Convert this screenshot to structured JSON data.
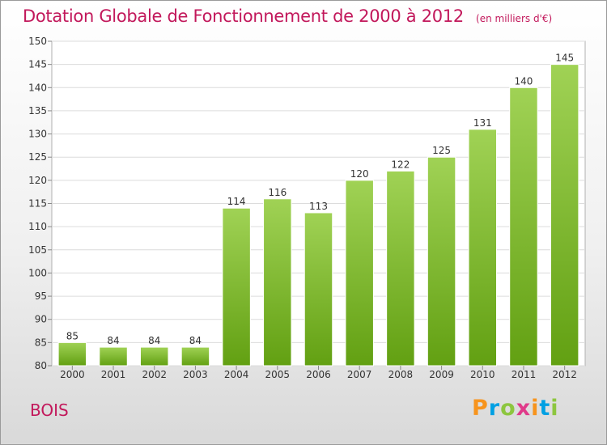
{
  "title": "Dotation Globale de Fonctionnement de 2000 à 2012",
  "unit": "(en milliers d'€)",
  "commune": "BOIS",
  "logo": {
    "letters": [
      "P",
      "r",
      "o",
      "x",
      "i",
      "t",
      "i"
    ],
    "colors": [
      "#f7941d",
      "#00a0e3",
      "#8dc63f",
      "#e03a8a",
      "#f7941d",
      "#00a0e3",
      "#8dc63f"
    ]
  },
  "chart_data": {
    "type": "bar",
    "title": "Dotation Globale de Fonctionnement de 2000 à 2012",
    "xlabel": "",
    "ylabel": "",
    "categories": [
      "2000",
      "2001",
      "2002",
      "2003",
      "2004",
      "2005",
      "2006",
      "2007",
      "2008",
      "2009",
      "2010",
      "2011",
      "2012"
    ],
    "values": [
      85,
      84,
      84,
      84,
      114,
      116,
      113,
      120,
      122,
      125,
      131,
      140,
      145
    ],
    "ylim": [
      80,
      150
    ],
    "yticks": [
      80,
      85,
      90,
      95,
      100,
      105,
      110,
      115,
      120,
      125,
      130,
      135,
      140,
      145,
      150
    ],
    "grid": true,
    "bar_color_top": "#a0d255",
    "bar_color_bottom": "#62a012"
  }
}
